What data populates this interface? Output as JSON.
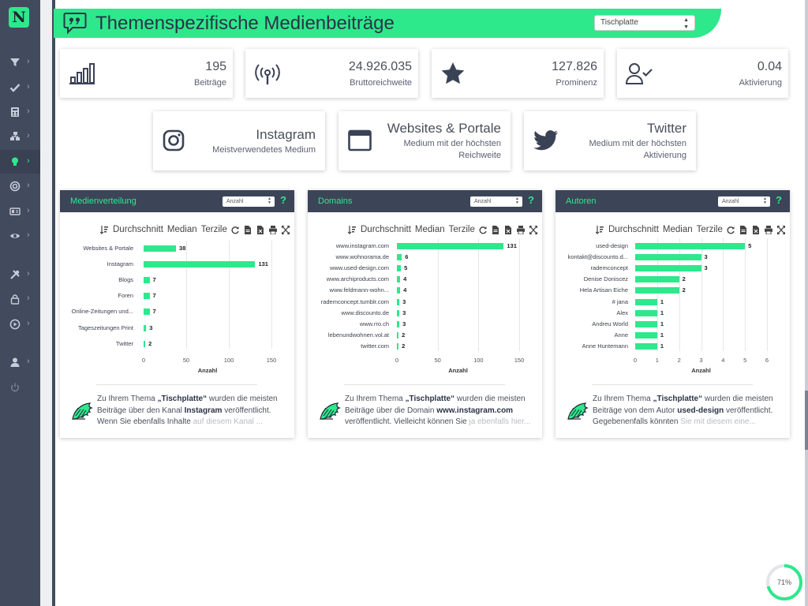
{
  "app": {
    "logo_letter": "N",
    "accent_color": "#2ee88c",
    "sidebar_color": "#424a5e"
  },
  "sidebar": {
    "items": [
      {
        "icon": "filter-icon",
        "has_chevron": true
      },
      {
        "icon": "check-icon",
        "has_chevron": true
      },
      {
        "icon": "calculator-icon",
        "has_chevron": true
      },
      {
        "icon": "network-icon",
        "has_chevron": true
      },
      {
        "icon": "lightbulb-icon",
        "has_chevron": true,
        "active": true
      },
      {
        "icon": "target-icon",
        "has_chevron": true
      },
      {
        "icon": "id-card-icon",
        "has_chevron": true
      },
      {
        "icon": "eye-icon",
        "has_chevron": true
      },
      {
        "icon": "tools-icon",
        "has_chevron": true
      },
      {
        "icon": "lock-icon",
        "has_chevron": true
      },
      {
        "icon": "play-circle-icon",
        "has_chevron": true
      },
      {
        "icon": "user-icon",
        "has_chevron": true
      },
      {
        "icon": "power-icon",
        "has_chevron": false
      }
    ]
  },
  "header": {
    "title": "Themenspezifische Medienbeiträge",
    "topic_select_value": "Tischplatte"
  },
  "kpis": [
    {
      "icon": "bar-chart-icon",
      "value": "195",
      "label": "Beiträge"
    },
    {
      "icon": "broadcast-icon",
      "value": "24.926.035",
      "label": "Bruttoreichweite"
    },
    {
      "icon": "star-icon",
      "value": "127.826",
      "label": "Prominenz"
    },
    {
      "icon": "user-check-icon",
      "value": "0.04",
      "label": "Aktivierung"
    }
  ],
  "highlights": [
    {
      "icon": "instagram-icon",
      "value": "Instagram",
      "label": "Meistverwendetes Medium"
    },
    {
      "icon": "browser-window-icon",
      "value": "Websites & Portale",
      "label": "Medium mit der höchsten Reichweite"
    },
    {
      "icon": "twitter-icon",
      "value": "Twitter",
      "label": "Medium mit der höchsten Aktivierung"
    }
  ],
  "toolbar": {
    "avg_label": "Durchschnitt",
    "median_label": "Median",
    "tercile_label": "Terzile"
  },
  "panels": [
    {
      "title": "Medienverteilung",
      "select_value": "Anzahl",
      "help": "?",
      "summary": {
        "p1": "Zu Ihrem Thema ",
        "topic": "„Tischplatte“",
        "p2": " wurden die meisten Beiträge über den Kanal ",
        "entity": "Instagram",
        "p3": " veröffentlicht. Wenn Sie ebenfalls Inhalte ",
        "fade": "auf diesem Kanal ..."
      },
      "chart_data": {
        "type": "bar",
        "orientation": "horizontal",
        "categories": [
          "Websites & Portale",
          "Instagram",
          "Blogs",
          "Foren",
          "Online-Zeitungen und...",
          "Tageszeitungen Print",
          "Twitter"
        ],
        "values": [
          38,
          131,
          7,
          7,
          7,
          3,
          2
        ],
        "value_labels": [
          "38",
          "131",
          "7",
          "7",
          "7",
          "3",
          "2"
        ],
        "xticks": [
          "0",
          "50",
          "100",
          "150"
        ],
        "xlim": [
          0,
          150
        ],
        "xlabel": "Anzahl",
        "grid": true
      }
    },
    {
      "title": "Domains",
      "select_value": "Anzahl",
      "help": "?",
      "summary": {
        "p1": "Zu Ihrem Thema ",
        "topic": "„Tischplatte“",
        "p2": " wurden die meisten Beiträge über die Domain ",
        "entity": "www.instagram.com",
        "p3": " veröffentlicht. Vielleicht können Sie ",
        "fade": "ja ebenfalls hier..."
      },
      "chart_data": {
        "type": "bar",
        "orientation": "horizontal",
        "categories": [
          "www.instagram.com",
          "www.wohnorama.de",
          "www.used-design.com",
          "www.archiproducts.com",
          "www.feldmann-wohn...",
          "rademconcept.tumblr.com",
          "www.discounto.de",
          "www.rro.ch",
          "lebenundwohnen.vol.at",
          "twitter.com"
        ],
        "values": [
          131,
          6,
          5,
          4,
          4,
          3,
          3,
          3,
          2,
          2
        ],
        "value_labels": [
          "131",
          "6",
          "5",
          "4",
          "4",
          "3",
          "3",
          "3",
          "2",
          "2"
        ],
        "xticks": [
          "0",
          "50",
          "100",
          "150"
        ],
        "xlim": [
          0,
          150
        ],
        "xlabel": "Anzahl",
        "grid": true
      }
    },
    {
      "title": "Autoren",
      "select_value": "Anzahl",
      "help": "?",
      "summary": {
        "p1": "Zu Ihrem Thema ",
        "topic": "„Tischplatte“",
        "p2": " wurden die meisten Beiträge von dem Autor ",
        "entity": "used-design",
        "p3": " veröffentlicht. Gegebenenfalls könnten ",
        "fade": "Sie mit diesem eine..."
      },
      "chart_data": {
        "type": "bar",
        "orientation": "horizontal",
        "categories": [
          "used-design",
          "kontakt@discounto.d...",
          "rademconcept",
          "Denise Doniscez",
          "Hela Artisan Eiche",
          "# jana",
          "Alex",
          "Andreu World",
          "Anne",
          "Anne Huntemann"
        ],
        "values": [
          5,
          3,
          3,
          2,
          2,
          1,
          1,
          1,
          1,
          1
        ],
        "value_labels": [
          "5",
          "3",
          "3",
          "2",
          "2",
          "1",
          "1",
          "1",
          "1",
          "1"
        ],
        "xticks": [
          "0",
          "1",
          "2",
          "3",
          "4",
          "5",
          "6"
        ],
        "xlim": [
          0,
          6
        ],
        "xlabel": "Anzahl",
        "grid": true
      }
    }
  ],
  "progress": {
    "percent": 71,
    "label": "71%"
  }
}
